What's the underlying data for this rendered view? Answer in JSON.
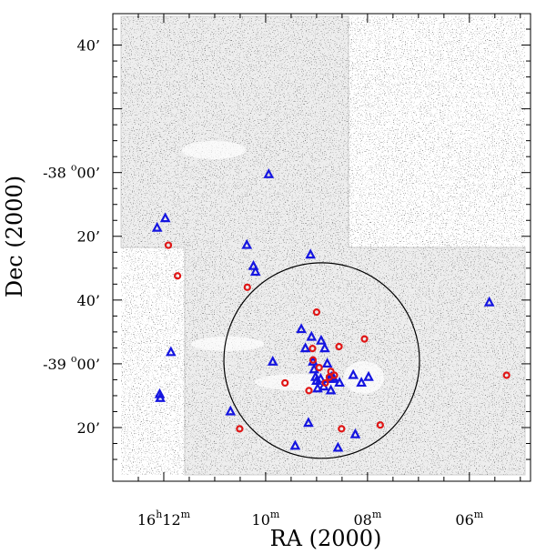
{
  "chart_data": {
    "type": "scatter",
    "title": "",
    "xlabel": "RA (2000)",
    "ylabel": "Dec (2000)",
    "x_ticks": [
      {
        "h": "16",
        "m": "12",
        "value_min": 972
      },
      {
        "h": "",
        "m": "10",
        "value_min": 970
      },
      {
        "h": "",
        "m": "08",
        "value_min": 968
      },
      {
        "h": "",
        "m": "06",
        "value_min": 966
      }
    ],
    "y_ticks": [
      {
        "deg": "",
        "arcmin": "40’",
        "value_deg": -37.333
      },
      {
        "deg": "-38",
        "arcmin": "00’",
        "value_deg": -38.0
      },
      {
        "deg": "",
        "arcmin": "20’",
        "value_deg": -38.333
      },
      {
        "deg": "",
        "arcmin": "40’",
        "value_deg": -38.667
      },
      {
        "deg": "-39",
        "arcmin": "00’",
        "value_deg": -39.0
      },
      {
        "deg": "",
        "arcmin": "20’",
        "value_deg": -39.333
      }
    ],
    "xlim_ra_min": [
      973.0,
      964.8
    ],
    "ylim_dec_deg": [
      -39.614,
      -37.169
    ],
    "circle": {
      "ra_min": 968.9,
      "dec_deg": -38.983,
      "radius_ra_min": 1.92
    },
    "series": [
      {
        "marker": "triangle",
        "color": "#1515e0",
        "points": [
          [
            969.94,
            -38.01
          ],
          [
            971.97,
            -38.24
          ],
          [
            972.13,
            -38.29
          ],
          [
            970.37,
            -38.38
          ],
          [
            969.12,
            -38.43
          ],
          [
            970.24,
            -38.49
          ],
          [
            970.2,
            -38.52
          ],
          [
            971.86,
            -38.94
          ],
          [
            969.86,
            -38.99
          ],
          [
            968.84,
            -38.92
          ],
          [
            969.3,
            -38.82
          ],
          [
            969.1,
            -38.86
          ],
          [
            969.22,
            -38.92
          ],
          [
            968.91,
            -38.88
          ],
          [
            969.07,
            -38.99
          ],
          [
            969.05,
            -39.03
          ],
          [
            969.02,
            -39.07
          ],
          [
            968.79,
            -39.0
          ],
          [
            968.71,
            -39.07
          ],
          [
            968.66,
            -39.08
          ],
          [
            968.55,
            -39.1
          ],
          [
            968.98,
            -39.13
          ],
          [
            968.28,
            -39.06
          ],
          [
            968.12,
            -39.1
          ],
          [
            967.98,
            -39.07
          ],
          [
            968.92,
            -39.08
          ],
          [
            968.72,
            -39.14
          ],
          [
            968.86,
            -39.12
          ],
          [
            969.0,
            -39.09
          ],
          [
            968.75,
            -39.08
          ],
          [
            972.07,
            -39.18
          ],
          [
            970.69,
            -39.25
          ],
          [
            969.16,
            -39.31
          ],
          [
            968.24,
            -39.37
          ],
          [
            969.42,
            -39.43
          ],
          [
            968.58,
            -39.44
          ],
          [
            965.61,
            -38.68
          ],
          [
            972.08,
            -39.16
          ]
        ]
      },
      {
        "marker": "circle",
        "color": "#e01515",
        "points": [
          [
            971.91,
            -38.38
          ],
          [
            971.73,
            -38.54
          ],
          [
            970.36,
            -38.6
          ],
          [
            969.0,
            -38.73
          ],
          [
            969.08,
            -38.92
          ],
          [
            968.56,
            -38.91
          ],
          [
            969.07,
            -38.98
          ],
          [
            968.95,
            -39.02
          ],
          [
            968.72,
            -39.04
          ],
          [
            968.83,
            -39.1
          ],
          [
            969.62,
            -39.1
          ],
          [
            969.15,
            -39.14
          ],
          [
            968.06,
            -38.87
          ],
          [
            970.51,
            -39.34
          ],
          [
            968.51,
            -39.34
          ],
          [
            967.75,
            -39.32
          ],
          [
            965.27,
            -39.06
          ],
          [
            968.65,
            -39.06
          ],
          [
            968.75,
            -39.07
          ]
        ]
      }
    ]
  }
}
